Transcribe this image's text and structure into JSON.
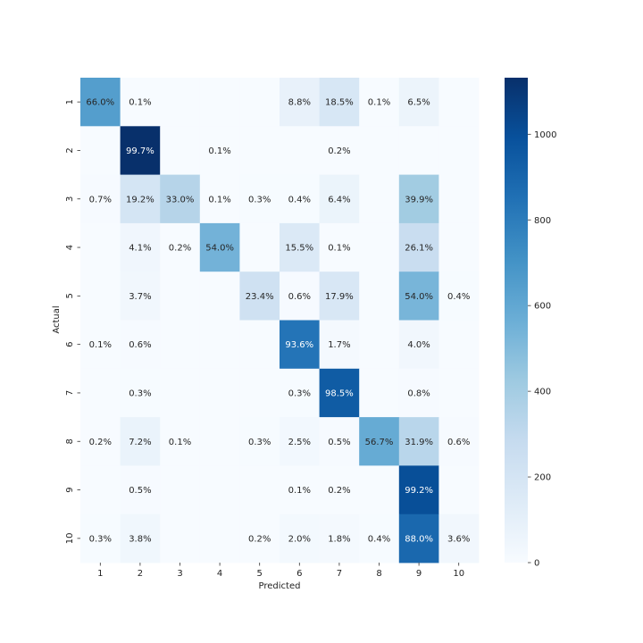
{
  "chart_data": {
    "type": "heatmap",
    "title": "",
    "xlabel": "Predicted",
    "ylabel": "Actual",
    "x_categories": [
      "1",
      "2",
      "3",
      "4",
      "5",
      "6",
      "7",
      "8",
      "9",
      "10"
    ],
    "y_categories": [
      "1",
      "2",
      "3",
      "4",
      "5",
      "6",
      "7",
      "8",
      "9",
      "10"
    ],
    "cell_labels": [
      [
        "66.0%",
        "0.1%",
        "",
        "",
        "",
        "8.8%",
        "18.5%",
        "0.1%",
        "6.5%",
        ""
      ],
      [
        "",
        "99.7%",
        "",
        "0.1%",
        "",
        "",
        "0.2%",
        "",
        "",
        ""
      ],
      [
        "0.7%",
        "19.2%",
        "33.0%",
        "0.1%",
        "0.3%",
        "0.4%",
        "6.4%",
        "",
        "39.9%",
        ""
      ],
      [
        "",
        "4.1%",
        "0.2%",
        "54.0%",
        "",
        "15.5%",
        "0.1%",
        "",
        "26.1%",
        ""
      ],
      [
        "",
        "3.7%",
        "",
        "",
        "23.4%",
        "0.6%",
        "17.9%",
        "",
        "54.0%",
        "0.4%"
      ],
      [
        "0.1%",
        "0.6%",
        "",
        "",
        "",
        "93.6%",
        "1.7%",
        "",
        "4.0%",
        ""
      ],
      [
        "",
        "0.3%",
        "",
        "",
        "",
        "0.3%",
        "98.5%",
        "",
        "0.8%",
        ""
      ],
      [
        "0.2%",
        "7.2%",
        "0.1%",
        "",
        "0.3%",
        "2.5%",
        "0.5%",
        "56.7%",
        "31.9%",
        "0.6%"
      ],
      [
        "",
        "0.5%",
        "",
        "",
        "",
        "0.1%",
        "0.2%",
        "",
        "99.2%",
        ""
      ],
      [
        "0.3%",
        "3.8%",
        "",
        "",
        "0.2%",
        "2.0%",
        "1.8%",
        "0.4%",
        "88.0%",
        "3.6%"
      ]
    ],
    "counts": [
      [
        646,
        1,
        0,
        0,
        0,
        86,
        181,
        1,
        64,
        0
      ],
      [
        0,
        1132,
        0,
        1,
        0,
        0,
        2,
        0,
        0,
        0
      ],
      [
        7,
        198,
        341,
        1,
        3,
        4,
        66,
        0,
        412,
        0
      ],
      [
        0,
        41,
        2,
        545,
        0,
        157,
        1,
        0,
        264,
        0
      ],
      [
        0,
        36,
        0,
        0,
        230,
        6,
        176,
        0,
        530,
        4
      ],
      [
        1,
        5,
        0,
        0,
        0,
        835,
        15,
        0,
        36,
        0
      ],
      [
        0,
        3,
        0,
        0,
        0,
        3,
        944,
        0,
        8,
        0
      ],
      [
        2,
        74,
        1,
        0,
        3,
        26,
        5,
        583,
        328,
        6
      ],
      [
        0,
        5,
        0,
        0,
        0,
        1,
        2,
        0,
        1001,
        0
      ],
      [
        3,
        38,
        0,
        0,
        2,
        20,
        18,
        4,
        888,
        36
      ]
    ],
    "colorbar": {
      "colormap": "Blues",
      "min": 0,
      "max": 1132,
      "ticks": [
        0,
        200,
        400,
        600,
        800,
        1000
      ],
      "tick_labels": [
        "0",
        "200",
        "400",
        "600",
        "800",
        "1000"
      ]
    },
    "grid": false,
    "legend": "colorbar-right"
  }
}
